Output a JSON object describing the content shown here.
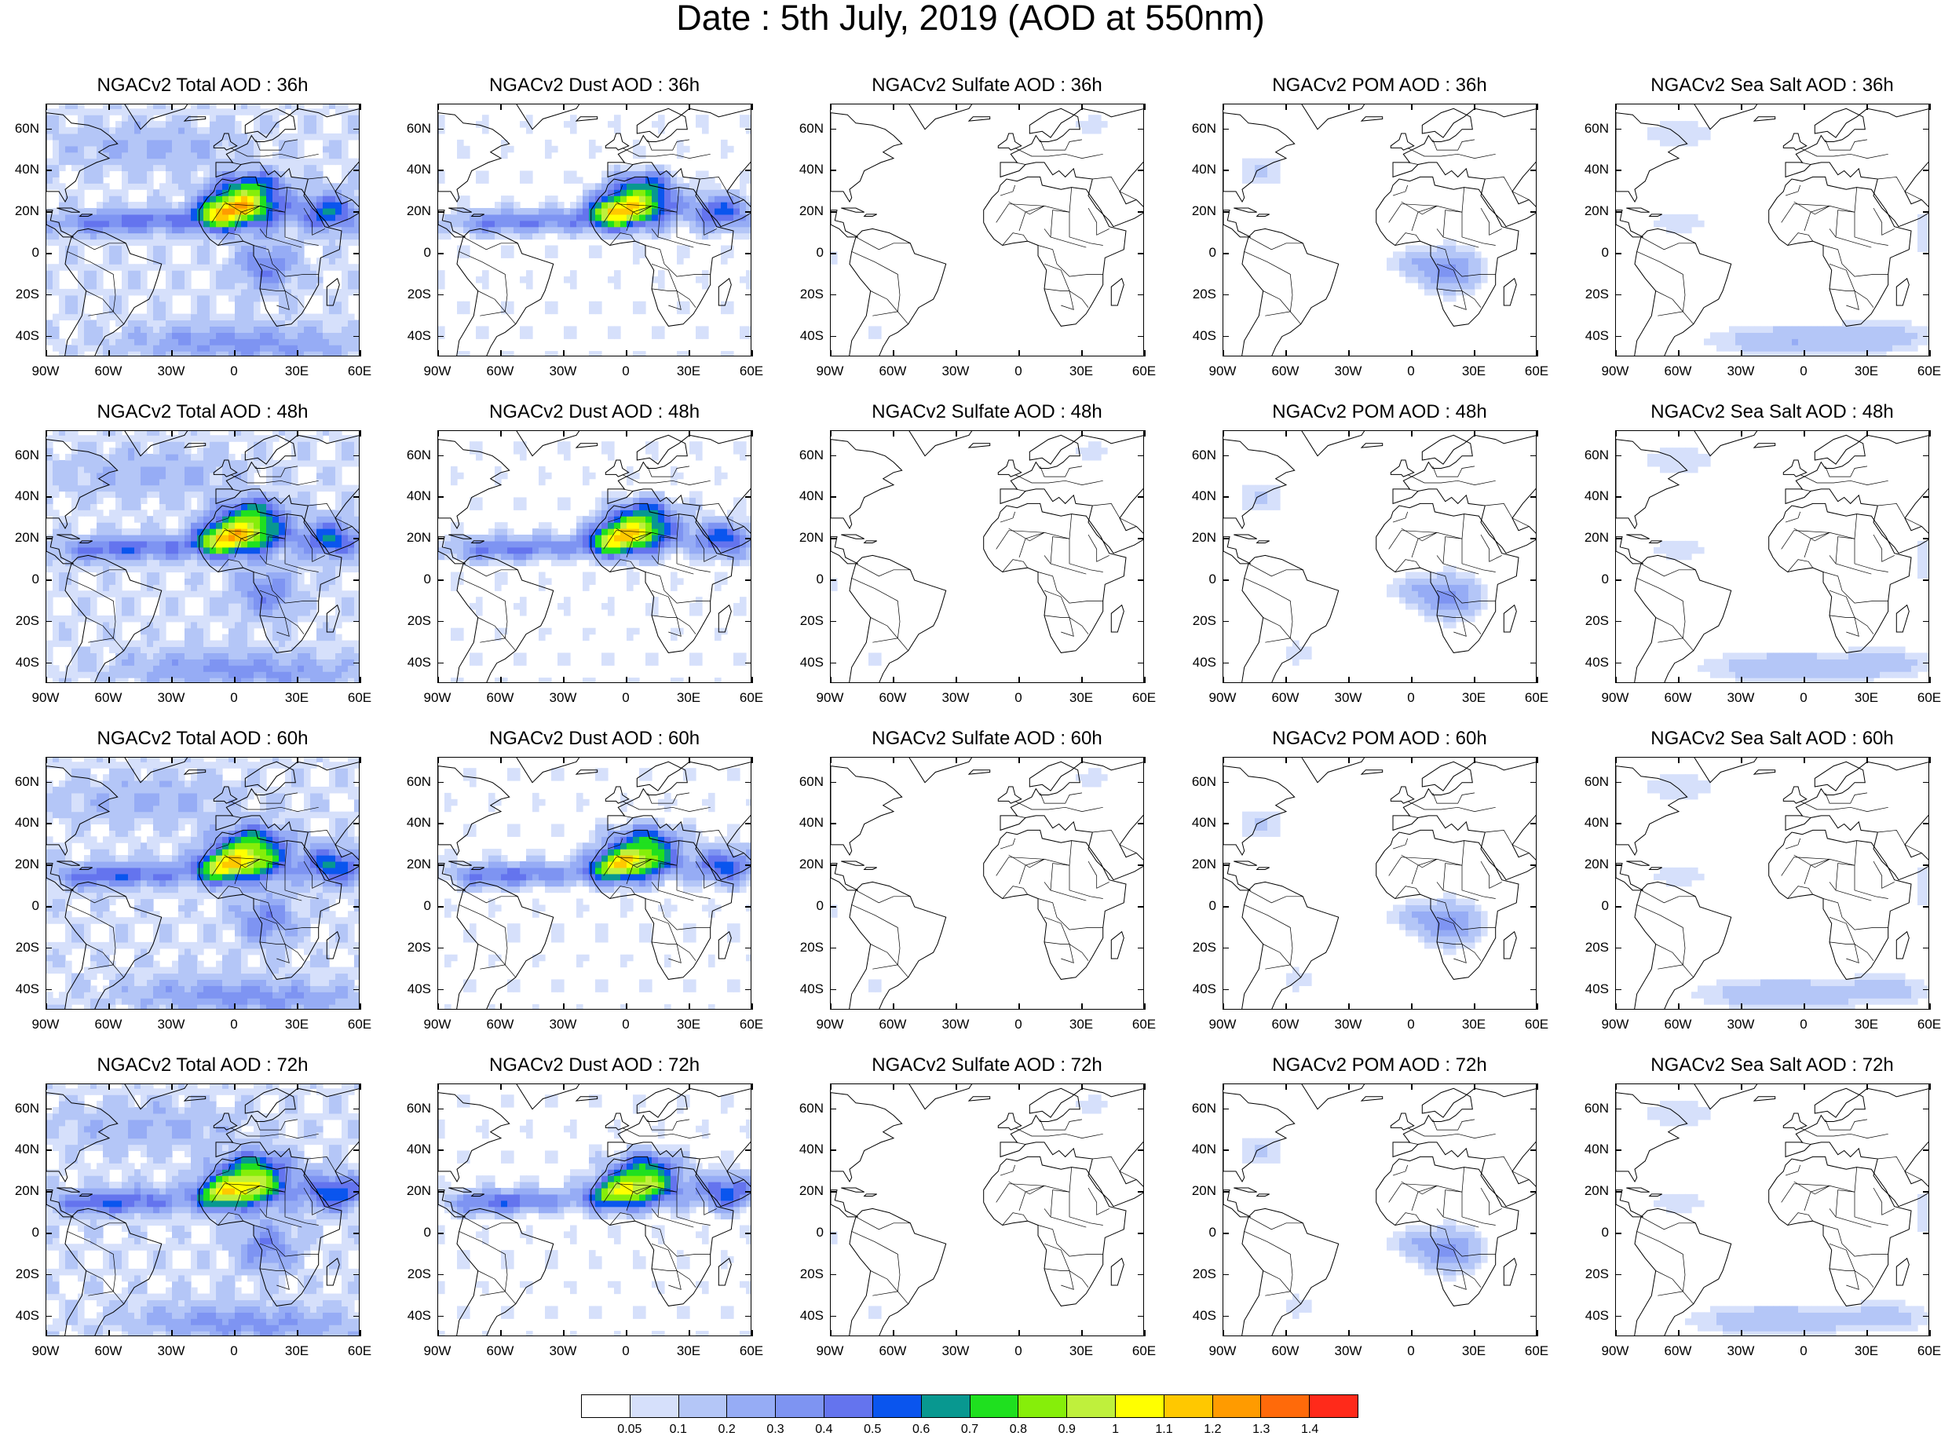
{
  "title": "Date : 5th July, 2019 (AOD at 550nm)",
  "panels": [
    {
      "title": "NGACv2 Total AOD : 36h",
      "species": "total"
    },
    {
      "title": "NGACv2 Dust AOD : 36h",
      "species": "dust"
    },
    {
      "title": "NGACv2 Sulfate AOD : 36h",
      "species": "sulfate"
    },
    {
      "title": "NGACv2 POM AOD : 36h",
      "species": "pom"
    },
    {
      "title": "NGACv2 Sea Salt AOD : 36h",
      "species": "seasalt"
    },
    {
      "title": "NGACv2 Total AOD : 48h",
      "species": "total"
    },
    {
      "title": "NGACv2 Dust AOD : 48h",
      "species": "dust"
    },
    {
      "title": "NGACv2 Sulfate AOD : 48h",
      "species": "sulfate"
    },
    {
      "title": "NGACv2 POM AOD : 48h",
      "species": "pom"
    },
    {
      "title": "NGACv2 Sea Salt AOD : 48h",
      "species": "seasalt"
    },
    {
      "title": "NGACv2 Total AOD : 60h",
      "species": "total"
    },
    {
      "title": "NGACv2 Dust AOD : 60h",
      "species": "dust"
    },
    {
      "title": "NGACv2 Sulfate AOD : 60h",
      "species": "sulfate"
    },
    {
      "title": "NGACv2 POM AOD : 60h",
      "species": "pom"
    },
    {
      "title": "NGACv2 Sea Salt AOD : 60h",
      "species": "seasalt"
    },
    {
      "title": "NGACv2 Total AOD : 72h",
      "species": "total"
    },
    {
      "title": "NGACv2 Dust AOD : 72h",
      "species": "dust"
    },
    {
      "title": "NGACv2 Sulfate AOD : 72h",
      "species": "sulfate"
    },
    {
      "title": "NGACv2 POM AOD : 72h",
      "species": "pom"
    },
    {
      "title": "NGACv2 Sea Salt  AOD : 72h",
      "species": "seasalt"
    }
  ],
  "lat_labels": [
    "60N",
    "40N",
    "20N",
    "0",
    "20S",
    "40S"
  ],
  "lon_labels": [
    "90W",
    "60W",
    "30W",
    "0",
    "30E",
    "60E"
  ],
  "colorbar": {
    "labels": [
      "0.05",
      "0.1",
      "0.2",
      "0.3",
      "0.4",
      "0.5",
      "0.6",
      "0.7",
      "0.8",
      "0.9",
      "1",
      "1.1",
      "1.2",
      "1.3",
      "1.4"
    ],
    "colors": [
      "#ffffff",
      "#d6e0fb",
      "#b4c6f7",
      "#96acf5",
      "#7e94f2",
      "#6474ee",
      "#0a55ee",
      "#089890",
      "#1fe01f",
      "#86ee0a",
      "#bff03c",
      "#ffff00",
      "#ffc800",
      "#ff9b00",
      "#ff6a0a",
      "#ff2a1a"
    ]
  }
}
